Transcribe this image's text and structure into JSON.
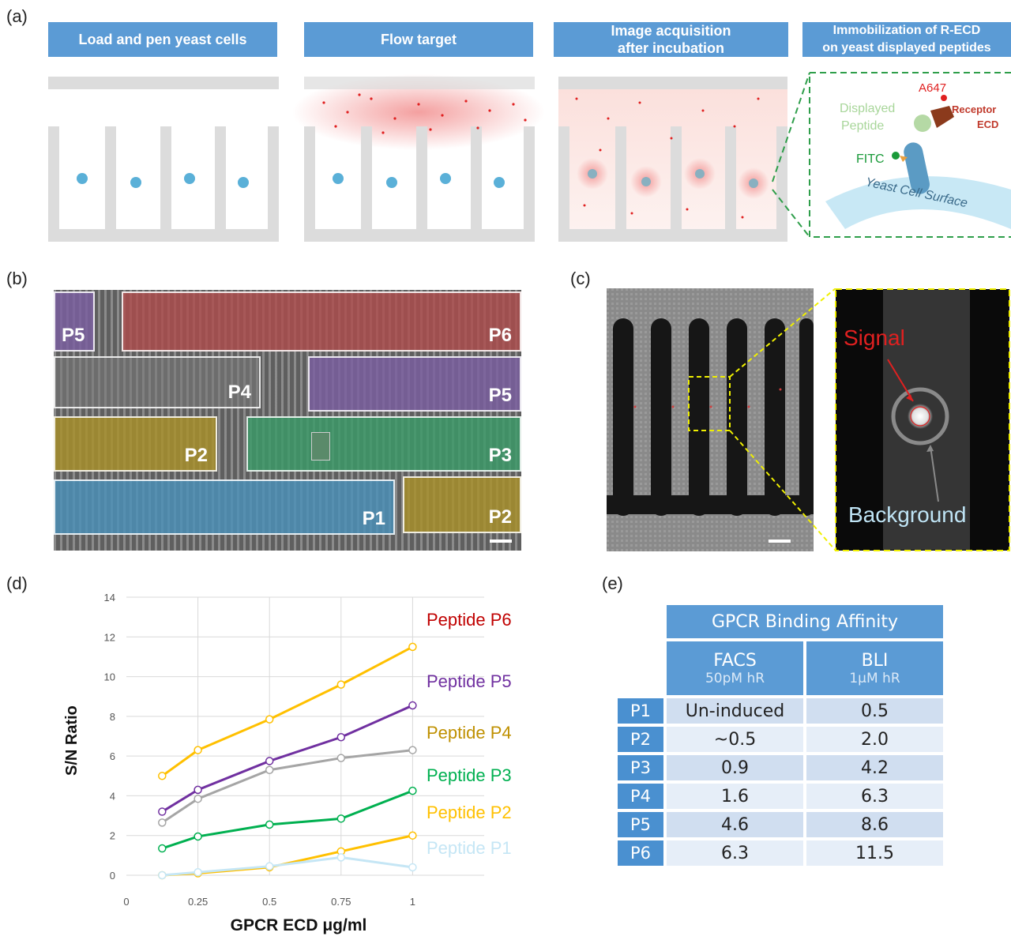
{
  "panel_labels": {
    "a": "(a)",
    "b": "(b)",
    "c": "(c)",
    "d": "(d)",
    "e": "(e)"
  },
  "panel_a": {
    "steps": [
      "Load and pen yeast cells",
      "Flow target",
      "Image acquisition\nafter incubation",
      "Immobilization of R-ECD\non yeast displayed peptides"
    ],
    "schematic": {
      "a647": "A647",
      "receptor": "Receptor",
      "ecd": "ECD",
      "displayed": "Displayed",
      "peptide": "Peptide",
      "fitc": "FITC",
      "surface": "Yeast Cell Surface"
    }
  },
  "panel_b": {
    "regions": [
      "P5",
      "P6",
      "P4",
      "P5",
      "P2",
      "P3",
      "P1",
      "P2"
    ],
    "colors": {
      "P1": "#4a90b8",
      "P2": "#a8902a",
      "P3": "#3a9a68",
      "P4": "#777777",
      "P5": "#7a5ea0",
      "P6": "#b04a4a"
    }
  },
  "panel_c": {
    "signal": "Signal",
    "background": "Background"
  },
  "chart_data": {
    "type": "line",
    "xlabel": "GPCR ECD μg/ml",
    "ylabel": "S/N Ratio",
    "x": [
      0.125,
      0.25,
      0.5,
      0.75,
      1
    ],
    "x_ticks": [
      "0",
      "0.25",
      "0.5",
      "0.75",
      "1"
    ],
    "xlim": [
      0,
      1.25
    ],
    "ylim": [
      0,
      14
    ],
    "y_ticks": [
      "0",
      "2",
      "4",
      "6",
      "8",
      "10",
      "12",
      "14"
    ],
    "grid": true,
    "legend": "right, labels beside lines",
    "series": [
      {
        "name": "Peptide P6",
        "values": [
          5.0,
          6.3,
          7.85,
          9.6,
          11.5
        ],
        "color": "#ffc000",
        "label_color": "#c00000"
      },
      {
        "name": "Peptide P5",
        "values": [
          3.2,
          4.3,
          5.75,
          6.95,
          8.55
        ],
        "color": "#7030a0",
        "label_color": "#7030a0"
      },
      {
        "name": "Peptide P4",
        "values": [
          2.65,
          3.85,
          5.3,
          5.9,
          6.3
        ],
        "color": "#a5a5a5",
        "label_color": "#bf9000"
      },
      {
        "name": "Peptide P3",
        "values": [
          1.35,
          1.95,
          2.55,
          2.85,
          4.25
        ],
        "color": "#00b050",
        "label_color": "#00b050"
      },
      {
        "name": "Peptide P2",
        "values": [
          0.0,
          0.1,
          0.4,
          1.2,
          2.0
        ],
        "color": "#ffc000",
        "label_color": "#ffc000"
      },
      {
        "name": "Peptide P1",
        "values": [
          0.0,
          0.15,
          0.45,
          0.9,
          0.4
        ],
        "color": "#c5e6f5",
        "label_color": "#c5e6f5"
      }
    ]
  },
  "table": {
    "title": "GPCR Binding Affinity",
    "col1": "FACS",
    "col1_sub": "50pM hR",
    "col2": "BLI",
    "col2_sub": "1μM hR",
    "rows": [
      {
        "label": "P1",
        "facs": "Un-induced",
        "bli": "0.5"
      },
      {
        "label": "P2",
        "facs": "~0.5",
        "bli": "2.0"
      },
      {
        "label": "P3",
        "facs": "0.9",
        "bli": "4.2"
      },
      {
        "label": "P4",
        "facs": "1.6",
        "bli": "6.3"
      },
      {
        "label": "P5",
        "facs": "4.6",
        "bli": "8.6"
      },
      {
        "label": "P6",
        "facs": "6.3",
        "bli": "11.5"
      }
    ]
  }
}
